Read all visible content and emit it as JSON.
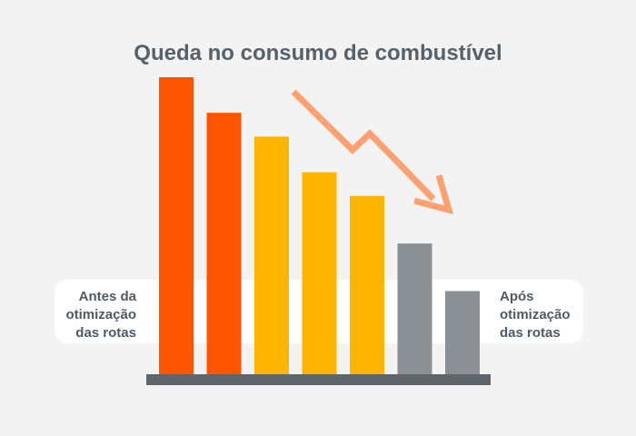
{
  "chart_data": {
    "type": "bar",
    "title": "Queda no consumo de combustível",
    "categories": [
      "",
      "",
      "",
      "",
      "",
      "",
      ""
    ],
    "values": [
      100,
      88,
      80,
      68,
      60,
      44,
      28
    ],
    "ylim": [
      0,
      100
    ],
    "colors": [
      "#ff5500",
      "#ff5500",
      "#ffb400",
      "#ffb400",
      "#ffb400",
      "#8a9093",
      "#8a9093"
    ],
    "grid": false,
    "legend": "none",
    "annotations": {
      "left": [
        "Antes da",
        "otimização",
        "das rotas"
      ],
      "right": [
        "Após",
        "otimização",
        "das rotas"
      ]
    },
    "trend_arrow": {
      "color": "#ffa070",
      "direction": "down"
    }
  },
  "theme": {
    "background": "#f3f3f3",
    "baseline": "#5e666c",
    "panel": "#ffffff"
  }
}
